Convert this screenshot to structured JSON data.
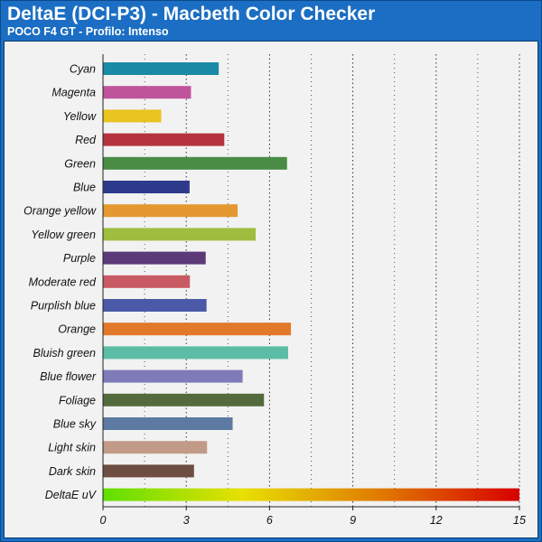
{
  "chart_data": {
    "type": "bar",
    "orientation": "horizontal",
    "title": "DeltaE (DCI-P3) - Macbeth Color Checker",
    "subtitle": "POCO F4 GT - Profilo: Intenso",
    "xlim": [
      0,
      15
    ],
    "xticks": [
      0,
      3,
      6,
      9,
      12,
      15
    ],
    "grid": "vertical dotted",
    "categories": [
      "Cyan",
      "Magenta",
      "Yellow",
      "Red",
      "Green",
      "Blue",
      "Orange yellow",
      "Yellow green",
      "Purple",
      "Moderate red",
      "Purplish blue",
      "Orange",
      "Bluish green",
      "Blue flower",
      "Foliage",
      "Blue sky",
      "Light skin",
      "Dark skin",
      "DeltaE uV"
    ],
    "values": [
      4.17,
      3.17,
      2.1,
      4.37,
      6.63,
      3.12,
      4.85,
      5.5,
      3.7,
      3.13,
      3.73,
      6.77,
      6.67,
      5.03,
      5.8,
      4.67,
      3.75,
      3.28,
      15
    ],
    "colors": [
      "#1a8aa6",
      "#c0549a",
      "#e8c41f",
      "#b5333f",
      "#4a8c46",
      "#2e3a8c",
      "#e3992f",
      "#9fbe3f",
      "#5c3a78",
      "#c85a64",
      "#4a5aa8",
      "#e2782a",
      "#5bbda6",
      "#7f7ab8",
      "#536b3c",
      "#5e7aa2",
      "#c29a88",
      "#6e4e42",
      "gradient"
    ],
    "gradient_stops": [
      "#5ee000",
      "#e8e000",
      "#e07a00",
      "#d80000"
    ]
  }
}
